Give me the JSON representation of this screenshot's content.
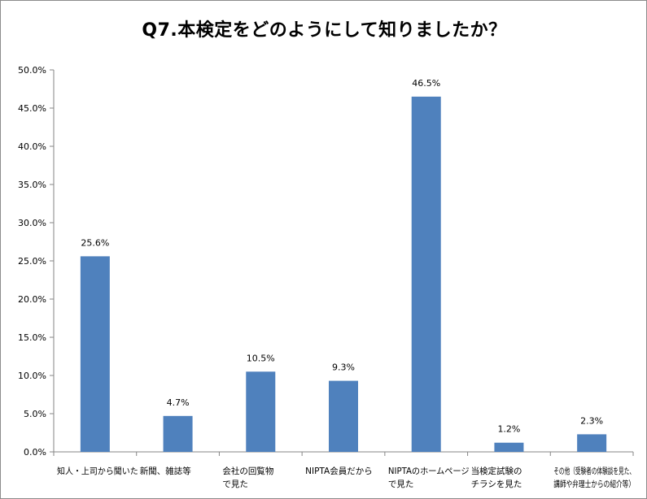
{
  "chart_data": {
    "type": "bar",
    "title": "Q7.本検定をどのようにして知りましたか？",
    "xlabel": "",
    "ylabel": "",
    "ylim": [
      0,
      50
    ],
    "y_tick_format": "percent_1dp",
    "y_ticks": [
      "0.0%",
      "5.0%",
      "10.0%",
      "15.0%",
      "20.0%",
      "25.0%",
      "30.0%",
      "35.0%",
      "40.0%",
      "45.0%",
      "50.0%"
    ],
    "bar_color": "#4f81bd",
    "grid": false,
    "legend": "none",
    "categories": [
      [
        "知人・上司から聞いた"
      ],
      [
        "新聞、雑誌等"
      ],
      [
        "会社の回覧物",
        "で見た"
      ],
      [
        "NIPTA会員だから"
      ],
      [
        "NIPTAのホームページ",
        "で見た"
      ],
      [
        "当検定試験の",
        "チラシを見た"
      ],
      [
        "その他（受験者の体験談を見た、",
        "講師や弁理士からの紹介等）"
      ]
    ],
    "values": [
      25.6,
      4.7,
      10.5,
      9.3,
      46.5,
      1.2,
      2.3
    ],
    "data_labels": [
      "25.6%",
      "4.7%",
      "10.5%",
      "9.3%",
      "46.5%",
      "1.2%",
      "2.3%"
    ]
  }
}
